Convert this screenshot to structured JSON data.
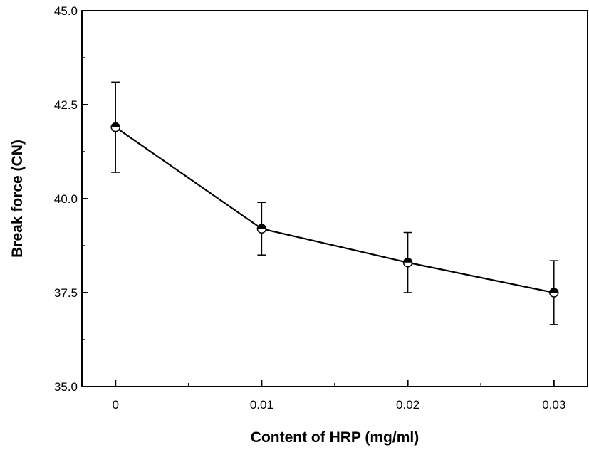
{
  "chart_data": {
    "type": "line",
    "title": "",
    "xlabel": "Content of HRP (mg/ml)",
    "ylabel": "Break force (CN)",
    "x": [
      0,
      0.01,
      0.02,
      0.03
    ],
    "x_tick_labels": [
      "0",
      "0.01",
      "0.02",
      "0.03"
    ],
    "y_tick_labels": [
      "35.0",
      "37.5",
      "40.0",
      "42.5",
      "45.0"
    ],
    "y_ticks": [
      35.0,
      37.5,
      40.0,
      42.5,
      45.0
    ],
    "xlim": [
      -0.0023,
      0.0323
    ],
    "ylim": [
      35.0,
      45.0
    ],
    "series": [
      {
        "values": [
          41.9,
          39.2,
          38.3,
          37.5
        ],
        "error": [
          1.2,
          0.7,
          0.8,
          0.85
        ]
      }
    ],
    "marker": "half-filled circle",
    "line_color": "#000000",
    "grid": false,
    "legend": "none"
  }
}
